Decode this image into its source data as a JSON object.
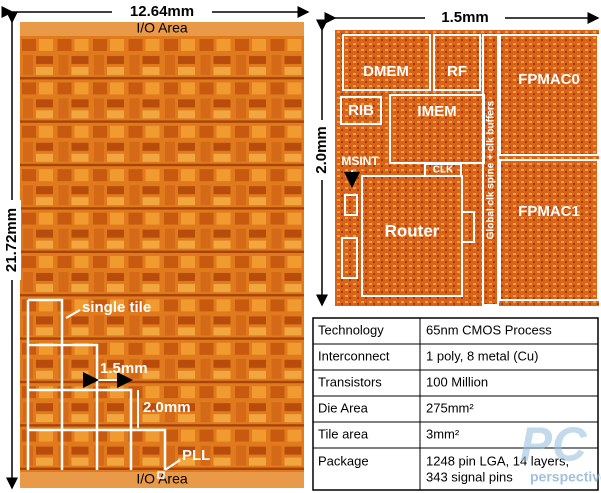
{
  "left_die": {
    "width_label": "12.64mm",
    "height_label": "21.72mm",
    "io_top": "I/O Area",
    "io_bottom": "I/O Area",
    "single_tile": "single tile",
    "tile_width": "1.5mm",
    "tile_height": "2.0mm",
    "pll": "PLL"
  },
  "tile": {
    "width_label": "1.5mm",
    "height_label": "2.0mm",
    "blocks": [
      "DMEM",
      "RF",
      "FPMAC0",
      "RIB",
      "IMEM",
      "MSINT",
      "CLK",
      "Global clk spine + clk buffers",
      "FPMAC1",
      "Router"
    ]
  },
  "table": {
    "rows": [
      [
        "Technology",
        "65nm CMOS Process"
      ],
      [
        "Interconnect",
        "1 poly, 8 metal (Cu)"
      ],
      [
        "Transistors",
        "100 Million"
      ],
      [
        "Die Area",
        "275mm²"
      ],
      [
        "Tile area",
        "3mm²"
      ],
      [
        "Package",
        "1248 pin LGA, 14 layers,",
        "343 signal pins"
      ]
    ]
  },
  "watermark": [
    "PC",
    "perspective"
  ]
}
